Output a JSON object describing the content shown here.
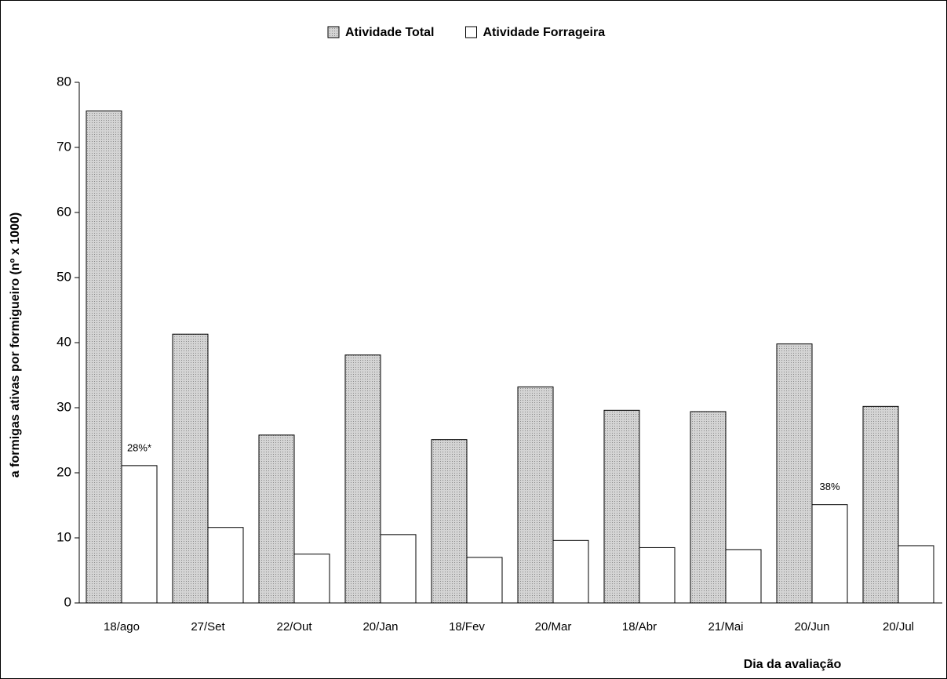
{
  "chart_data": {
    "type": "bar",
    "ylabel": "a formigas ativas por formigueiro (nº x 1000)",
    "xlabel": "Dia da avaliação",
    "categories": [
      "18/ago",
      "27/Set",
      "22/Out",
      "20/Jan",
      "18/Fev",
      "20/Mar",
      "18/Abr",
      "21/Mai",
      "20/Jun",
      "20/Jul"
    ],
    "series": [
      {
        "name": "Atividade Total",
        "color": "#c8c8c8",
        "values": [
          75.6,
          41.3,
          25.8,
          38.1,
          25.1,
          33.2,
          29.6,
          29.4,
          39.8,
          30.2
        ]
      },
      {
        "name": "Atividade Forrageira",
        "color": "#ffffff",
        "values": [
          21.1,
          11.6,
          7.5,
          10.5,
          7.0,
          9.6,
          8.5,
          8.2,
          15.1,
          8.8
        ]
      }
    ],
    "annotations": [
      {
        "text": "28%*",
        "category": "18/ago"
      },
      {
        "text": "38%",
        "category": "20/Jun"
      }
    ],
    "ylim": [
      0,
      80
    ],
    "yticks": [
      0,
      10,
      20,
      30,
      40,
      50,
      60,
      70,
      80
    ],
    "legend": "top"
  }
}
